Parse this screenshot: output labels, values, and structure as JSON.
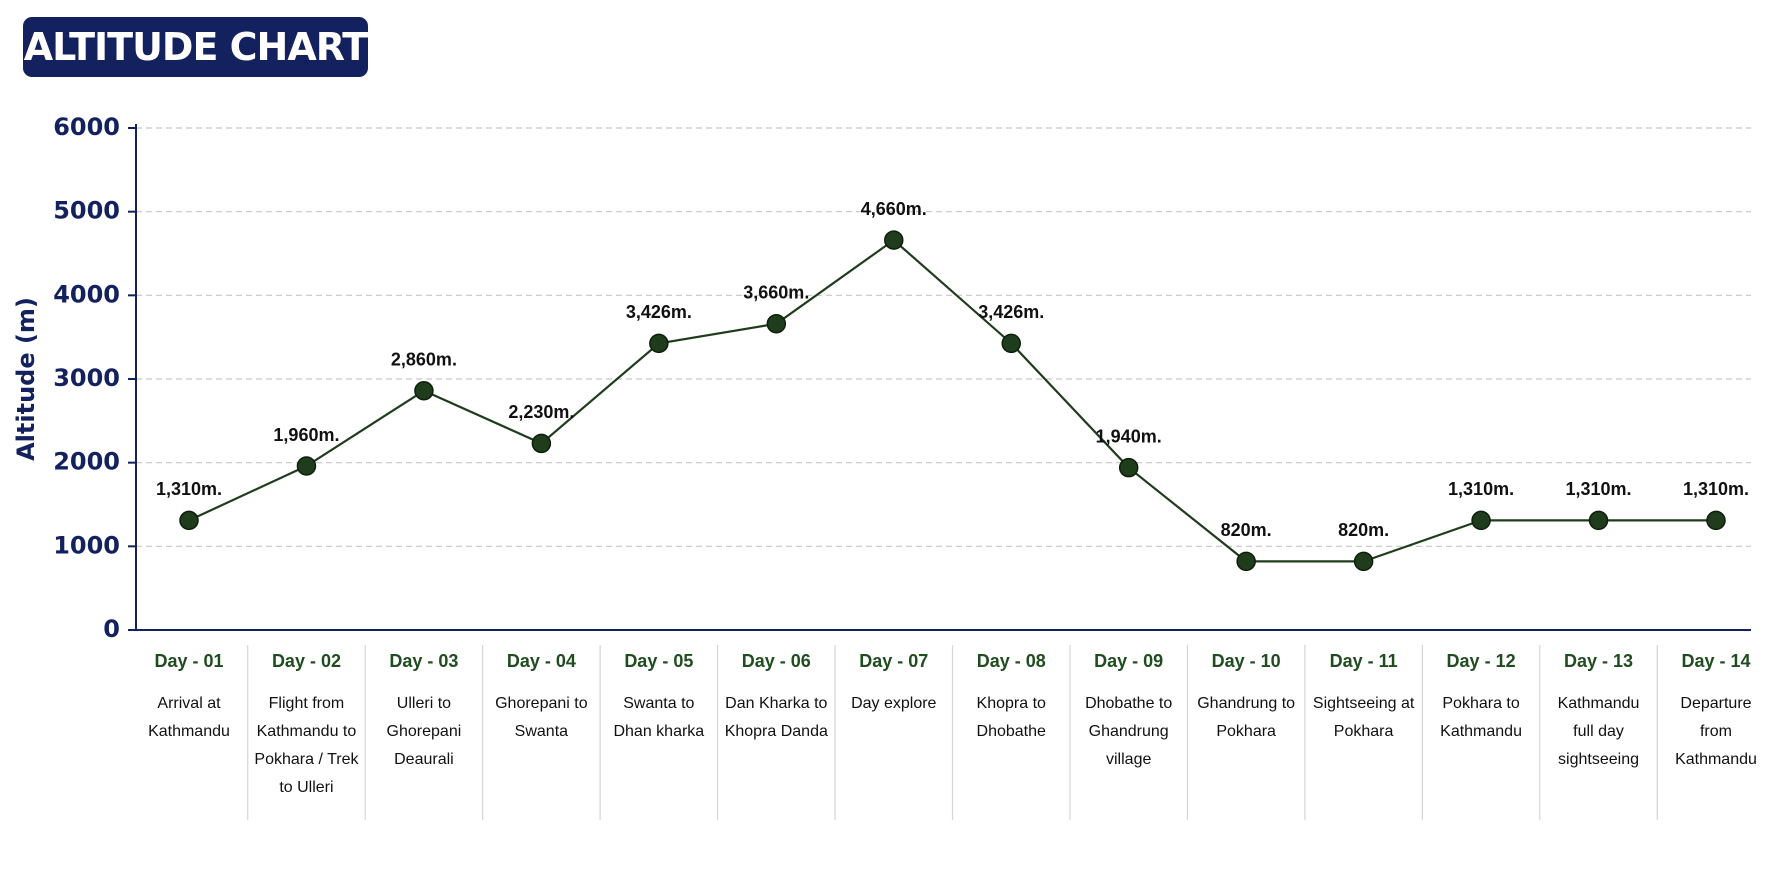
{
  "chart_data": {
    "type": "line",
    "title": "ALTITUDE CHART",
    "y_label": "Altitude (m)",
    "categories": [
      "Day - 01",
      "Day - 02",
      "Day - 03",
      "Day - 04",
      "Day - 05",
      "Day - 06",
      "Day - 07",
      "Day - 08",
      "Day - 09",
      "Day - 10",
      "Day - 11",
      "Day - 12",
      "Day - 13",
      "Day - 14"
    ],
    "descriptions": [
      "Arrival at Kathmandu",
      "Flight from Kathmandu to Pokhara / Trek to Ulleri",
      "Ulleri to Ghorepani Deaurali",
      "Ghorepani to Swanta",
      "Swanta to Dhan kharka",
      "Dan Kharka to Khopra Danda",
      "Day explore",
      "Khopra to Dhobathe",
      "Dhobathe to Ghandrung village",
      "Ghandrung to Pokhara",
      "Sightseeing at Pokhara",
      "Pokhara to Kathmandu",
      "Kathmandu full day sightseeing",
      "Departure from Kathmandu"
    ],
    "values": [
      1310,
      1960,
      2860,
      2230,
      3426,
      3660,
      4660,
      3426,
      1940,
      820,
      820,
      1310,
      1310,
      1310
    ],
    "value_labels": [
      "1,310m.",
      "1,960m.",
      "2,860m.",
      "2,230m.",
      "3,426m.",
      "3,660m.",
      "4,660m.",
      "3,426m.",
      "1,940m.",
      "820m.",
      "820m.",
      "1,310m.",
      "1,310m.",
      "1,310m."
    ],
    "color": "#1f3d1c",
    "ylim": [
      0,
      6000
    ],
    "yticks": [
      0,
      1000,
      2000,
      3000,
      4000,
      5000,
      6000
    ],
    "grid": true
  }
}
